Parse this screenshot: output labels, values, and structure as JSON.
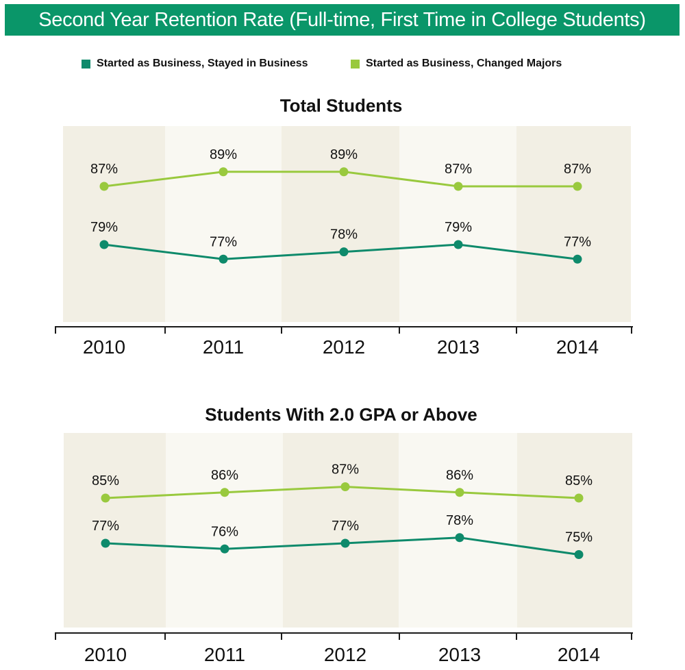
{
  "header": {
    "title": "Second Year Retention Rate (Full-time, First Time in College Students)"
  },
  "colors": {
    "banner": "#0a9669",
    "stayed": "#0e8a6b",
    "changed": "#99c93e",
    "band_dark": "#f2efe4",
    "band_light": "#f9f8f2"
  },
  "legend": {
    "stayed_label": "Started as Business, Stayed in Business",
    "changed_label": "Started as Business, Changed Majors"
  },
  "chart_data": [
    {
      "type": "line",
      "title": "Total Students",
      "categories": [
        "2010",
        "2011",
        "2012",
        "2013",
        "2014"
      ],
      "series": [
        {
          "name": "Started as Business, Changed Majors",
          "values": [
            87,
            89,
            89,
            87,
            87
          ],
          "labels": [
            "87%",
            "89%",
            "89%",
            "87%",
            "87%"
          ]
        },
        {
          "name": "Started as Business, Stayed in Business",
          "values": [
            79,
            77,
            78,
            79,
            77
          ],
          "labels": [
            "79%",
            "77%",
            "78%",
            "79%",
            "77%"
          ]
        }
      ],
      "ylim": [
        70,
        90
      ],
      "grid": false,
      "legend": "top"
    },
    {
      "type": "line",
      "title": "Students With 2.0 GPA or Above",
      "categories": [
        "2010",
        "2011",
        "2012",
        "2013",
        "2014"
      ],
      "series": [
        {
          "name": "Started as Business, Changed Majors",
          "values": [
            85,
            86,
            87,
            86,
            85
          ],
          "labels": [
            "85%",
            "86%",
            "87%",
            "86%",
            "85%"
          ]
        },
        {
          "name": "Started as Business, Stayed in Business",
          "values": [
            77,
            76,
            77,
            78,
            75
          ],
          "labels": [
            "77%",
            "76%",
            "77%",
            "78%",
            "75%"
          ]
        }
      ],
      "ylim": [
        70,
        90
      ],
      "grid": false,
      "legend": "top"
    }
  ]
}
